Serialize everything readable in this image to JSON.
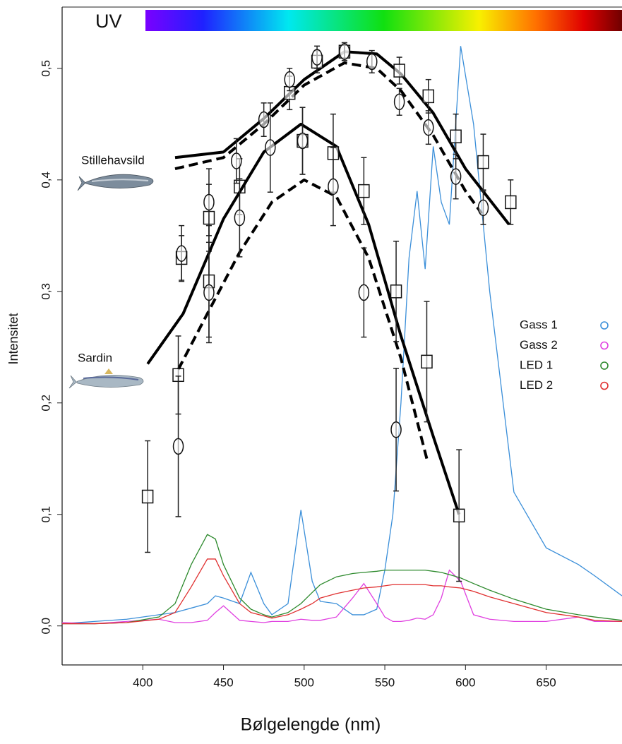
{
  "chart_data": {
    "type": "line",
    "y_label": "Intensitet",
    "x_label": "Bølgelengde (nm)",
    "spectrum_label": "UV",
    "xlim": [
      350,
      697
    ],
    "ylim": [
      -0.035,
      0.555
    ],
    "xticks": [
      400,
      450,
      500,
      550,
      600,
      650
    ],
    "yticks": [
      {
        "value": 0,
        "label": "0,0"
      },
      {
        "value": 0.1,
        "label": "0,1"
      },
      {
        "value": 0.2,
        "label": "0,2"
      },
      {
        "value": 0.3,
        "label": "0,3"
      },
      {
        "value": 0.4,
        "label": "0,4"
      },
      {
        "value": 0.5,
        "label": "0,5"
      }
    ],
    "x": [
      350,
      370,
      390,
      410,
      420,
      430,
      440,
      445,
      450,
      460,
      467,
      475,
      480,
      490,
      498,
      505,
      510,
      520,
      530,
      537,
      545,
      550,
      555,
      560,
      565,
      570,
      575,
      580,
      585,
      590,
      597,
      605,
      615,
      630,
      650,
      670,
      680,
      697
    ],
    "series": [
      {
        "name": "Gass 1",
        "color": "#3b8fd9",
        "values": [
          0.002,
          0.004,
          0.006,
          0.01,
          0.012,
          0.016,
          0.02,
          0.027,
          0.025,
          0.02,
          0.048,
          0.02,
          0.01,
          0.02,
          0.104,
          0.04,
          0.022,
          0.02,
          0.01,
          0.01,
          0.015,
          0.05,
          0.1,
          0.2,
          0.33,
          0.39,
          0.32,
          0.43,
          0.38,
          0.36,
          0.52,
          0.45,
          0.3,
          0.12,
          0.07,
          0.055,
          0.045,
          0.027
        ]
      },
      {
        "name": "Gass 2",
        "color": "#e040e0",
        "values": [
          0.003,
          0.002,
          0.004,
          0.006,
          0.003,
          0.003,
          0.005,
          0.012,
          0.018,
          0.005,
          0.004,
          0.003,
          0.004,
          0.004,
          0.006,
          0.005,
          0.005,
          0.008,
          0.025,
          0.038,
          0.02,
          0.008,
          0.004,
          0.004,
          0.005,
          0.007,
          0.006,
          0.01,
          0.025,
          0.05,
          0.04,
          0.01,
          0.006,
          0.004,
          0.004,
          0.008,
          0.004,
          0.004
        ]
      },
      {
        "name": "LED 1",
        "color": "#2e8a2e",
        "values": [
          0.002,
          0.002,
          0.003,
          0.008,
          0.02,
          0.055,
          0.082,
          0.078,
          0.055,
          0.025,
          0.015,
          0.01,
          0.008,
          0.012,
          0.02,
          0.03,
          0.037,
          0.044,
          0.047,
          0.048,
          0.049,
          0.05,
          0.05,
          0.05,
          0.05,
          0.05,
          0.05,
          0.049,
          0.048,
          0.046,
          0.043,
          0.038,
          0.032,
          0.024,
          0.015,
          0.01,
          0.008,
          0.005
        ]
      },
      {
        "name": "LED 2",
        "color": "#e03030",
        "values": [
          0.002,
          0.002,
          0.003,
          0.006,
          0.012,
          0.035,
          0.06,
          0.06,
          0.045,
          0.02,
          0.012,
          0.009,
          0.007,
          0.01,
          0.015,
          0.02,
          0.025,
          0.029,
          0.032,
          0.034,
          0.035,
          0.036,
          0.037,
          0.037,
          0.037,
          0.037,
          0.037,
          0.036,
          0.036,
          0.035,
          0.034,
          0.031,
          0.026,
          0.02,
          0.012,
          0.008,
          0.005,
          0.004
        ]
      }
    ],
    "species": [
      {
        "name": "Stillehavsild",
        "measurements": [
          {
            "marker": "square",
            "x": [
              424,
              441,
              460,
              491,
              508,
              525,
              559,
              577,
              594,
              611,
              628
            ],
            "values": [
              0.33,
              0.366,
              0.394,
              0.478,
              0.506,
              0.515,
              0.498,
              0.475,
              0.439,
              0.416,
              0.38
            ],
            "errors": [
              0.02,
              0.03,
              0.025,
              0.015,
              0.01,
              0.008,
              0.012,
              0.015,
              0.02,
              0.025,
              0.02
            ]
          },
          {
            "marker": "circle",
            "x": [
              424,
              441,
              458,
              475,
              491,
              508,
              525,
              542,
              559,
              577,
              594,
              611
            ],
            "values": [
              0.334,
              0.38,
              0.417,
              0.454,
              0.49,
              0.51,
              0.515,
              0.506,
              0.47,
              0.447,
              0.403,
              0.375
            ],
            "errors": [
              0.025,
              0.03,
              0.02,
              0.015,
              0.01,
              0.01,
              0.008,
              0.01,
              0.012,
              0.015,
              0.02,
              0.015
            ]
          }
        ],
        "fits": [
          {
            "style": "solid",
            "x": [
              420,
              450,
              475,
              500,
              525,
              545,
              560,
              580,
              600,
              627
            ],
            "values": [
              0.42,
              0.425,
              0.455,
              0.49,
              0.515,
              0.513,
              0.495,
              0.46,
              0.41,
              0.36
            ]
          },
          {
            "style": "dashed",
            "x": [
              420,
              450,
              475,
              500,
              525,
              545,
              560,
              580,
              600,
              610
            ],
            "values": [
              0.41,
              0.42,
              0.45,
              0.485,
              0.505,
              0.5,
              0.48,
              0.44,
              0.39,
              0.37
            ]
          }
        ]
      },
      {
        "name": "Sardin",
        "measurements": [
          {
            "marker": "square",
            "x": [
              403,
              422,
              441,
              499,
              518,
              537,
              557,
              576,
              596
            ],
            "values": [
              0.116,
              0.225,
              0.309,
              0.435,
              0.424,
              0.39,
              0.3,
              0.237,
              0.099
            ],
            "errors": [
              0.05,
              0.035,
              0.05,
              0.03,
              0.035,
              0.03,
              0.045,
              0.054,
              0.059
            ]
          },
          {
            "marker": "circle",
            "x": [
              422,
              441,
              460,
              479,
              499,
              518,
              537,
              557
            ],
            "values": [
              0.161,
              0.299,
              0.366,
              0.429,
              0.435,
              0.394,
              0.299,
              0.176
            ],
            "errors": [
              0.063,
              0.045,
              0.035,
              0.04,
              0.03,
              0.035,
              0.04,
              0.055
            ]
          }
        ],
        "fits": [
          {
            "style": "solid",
            "x": [
              403,
              425,
              450,
              475,
              498,
              520,
              540,
              560,
              580,
              596
            ],
            "values": [
              0.235,
              0.28,
              0.365,
              0.425,
              0.45,
              0.43,
              0.36,
              0.26,
              0.17,
              0.1
            ]
          },
          {
            "style": "dashed",
            "x": [
              422,
              440,
              460,
              480,
              500,
              520,
              540,
              560,
              576
            ],
            "values": [
              0.23,
              0.28,
              0.335,
              0.38,
              0.4,
              0.385,
              0.33,
              0.24,
              0.15
            ]
          }
        ]
      }
    ]
  }
}
